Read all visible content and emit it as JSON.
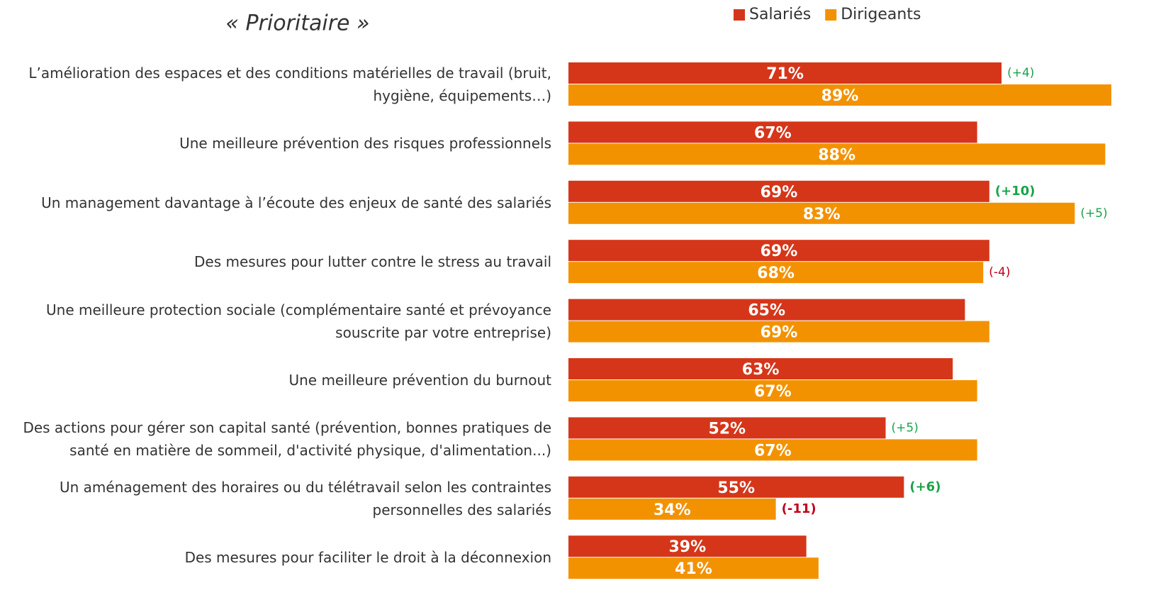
{
  "chart_data": {
    "type": "hbar",
    "title": "« Prioritaire »",
    "categories": [
      "L’amélioration des espaces et des conditions matérielles de travail (bruit, hygiène, équipements…)",
      "Une meilleure prévention des risques professionnels",
      "Un management davantage à l’écoute des enjeux de santé des salariés",
      "Des mesures pour lutter contre le stress au travail",
      "Une meilleure protection sociale (complémentaire santé et prévoyance souscrite par votre entreprise)",
      "Une meilleure prévention du burnout",
      "Des actions pour gérer son capital santé (prévention, bonnes pratiques de santé en matière de sommeil, d'activité physique, d'alimentation...)",
      "Un aménagement des horaires ou du télétravail selon les contraintes personnelles des salariés",
      "Des mesures pour faciliter le droit à la déconnexion"
    ],
    "series": [
      {
        "name": "Salariés",
        "color": "#d5361a",
        "values": [
          71,
          67,
          69,
          69,
          65,
          63,
          52,
          55,
          39
        ],
        "value_labels": [
          "71%",
          "67%",
          "69%",
          "69%",
          "65%",
          "63%",
          "52%",
          "55%",
          "39%"
        ],
        "deltas": [
          4,
          null,
          10,
          null,
          null,
          null,
          5,
          6,
          null
        ],
        "delta_labels": [
          "(+4)",
          null,
          "(+10)",
          null,
          null,
          null,
          "(+5)",
          "(+6)",
          null
        ],
        "delta_bold": [
          false,
          false,
          true,
          false,
          false,
          false,
          false,
          true,
          false
        ]
      },
      {
        "name": "Dirigeants",
        "color": "#f39200",
        "values": [
          89,
          88,
          83,
          68,
          69,
          67,
          67,
          34,
          41
        ],
        "value_labels": [
          "89%",
          "88%",
          "83%",
          "68%",
          "69%",
          "67%",
          "67%",
          "34%",
          "41%"
        ],
        "deltas": [
          null,
          null,
          5,
          -4,
          null,
          null,
          null,
          -11,
          null
        ],
        "delta_labels": [
          null,
          null,
          "(+5)",
          "(-4)",
          null,
          null,
          null,
          "(-11)",
          null
        ],
        "delta_bold": [
          false,
          false,
          false,
          false,
          false,
          false,
          false,
          true,
          false
        ]
      }
    ],
    "positive_color": "#1aa34a",
    "negative_color": "#c0001a"
  }
}
